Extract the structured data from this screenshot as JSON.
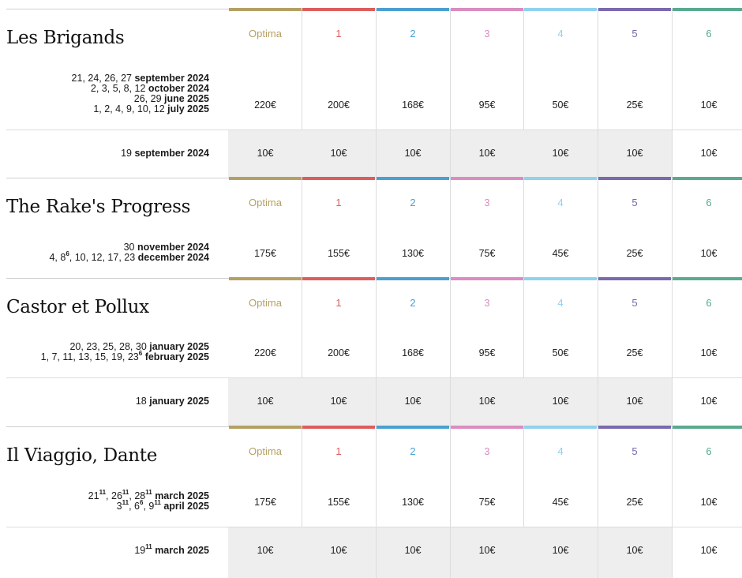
{
  "categories": [
    {
      "label": "Optima",
      "color": "#b5a063"
    },
    {
      "label": "1",
      "color": "#dd5d5d"
    },
    {
      "label": "2",
      "color": "#4aa0d0"
    },
    {
      "label": "3",
      "color": "#db8cc0"
    },
    {
      "label": "4",
      "color": "#8fd2ee"
    },
    {
      "label": "5",
      "color": "#7a6aae"
    },
    {
      "label": "6",
      "color": "#5aab8d"
    }
  ],
  "shows": [
    {
      "title": "Les Brigands",
      "dates": [
        [
          {
            "t": "21, 24, 26, 27 "
          },
          {
            "t": "september 2024",
            "b": true
          }
        ],
        [
          {
            "t": "2, 3, 5, 8, 12 "
          },
          {
            "t": "october 2024",
            "b": true
          }
        ],
        [
          {
            "t": "26, 29 "
          },
          {
            "t": "june 2025",
            "b": true
          }
        ],
        [
          {
            "t": "1, 2, 4, 9, 10, 12 "
          },
          {
            "t": "july 2025",
            "b": true
          }
        ]
      ],
      "prices": [
        "220€",
        "200€",
        "168€",
        "95€",
        "50€",
        "25€",
        "10€"
      ],
      "sub": {
        "date": [
          {
            "t": "19 "
          },
          {
            "t": "september 2024",
            "b": true
          }
        ],
        "prices": [
          "10€",
          "10€",
          "10€",
          "10€",
          "10€",
          "10€",
          "10€"
        ]
      }
    },
    {
      "title": "The Rake's Progress",
      "dates": [
        [
          {
            "t": "30 "
          },
          {
            "t": "november 2024",
            "b": true
          }
        ],
        [
          {
            "t": "4, 8"
          },
          {
            "t": "6",
            "sup": true
          },
          {
            "t": ", 10, 12, 17, 23 "
          },
          {
            "t": "december 2024",
            "b": true
          }
        ]
      ],
      "prices": [
        "175€",
        "155€",
        "130€",
        "75€",
        "45€",
        "25€",
        "10€"
      ]
    },
    {
      "title": "Castor et Pollux",
      "dates": [
        [
          {
            "t": "20, 23, 25, 28, 30 "
          },
          {
            "t": "january 2025",
            "b": true
          }
        ],
        [
          {
            "t": "1, 7, 11, 13, 15, 19, 23"
          },
          {
            "t": "6",
            "sup": true
          },
          {
            "t": " "
          },
          {
            "t": "february 2025",
            "b": true
          }
        ]
      ],
      "prices": [
        "220€",
        "200€",
        "168€",
        "95€",
        "50€",
        "25€",
        "10€"
      ],
      "sub": {
        "date": [
          {
            "t": "18 "
          },
          {
            "t": "january 2025",
            "b": true
          }
        ],
        "prices": [
          "10€",
          "10€",
          "10€",
          "10€",
          "10€",
          "10€",
          "10€"
        ]
      }
    },
    {
      "title": "Il Viaggio, Dante",
      "dates": [
        [
          {
            "t": "21"
          },
          {
            "t": "11",
            "sup": true
          },
          {
            "t": ", 26"
          },
          {
            "t": "11",
            "sup": true
          },
          {
            "t": ", 28"
          },
          {
            "t": "11",
            "sup": true
          },
          {
            "t": " "
          },
          {
            "t": "march 2025",
            "b": true
          }
        ],
        [
          {
            "t": "3"
          },
          {
            "t": "11",
            "sup": true
          },
          {
            "t": ", 6"
          },
          {
            "t": "6",
            "sup": true
          },
          {
            "t": ", 9"
          },
          {
            "t": "11",
            "sup": true
          },
          {
            "t": " "
          },
          {
            "t": "april 2025",
            "b": true
          }
        ]
      ],
      "prices": [
        "175€",
        "155€",
        "130€",
        "75€",
        "45€",
        "25€",
        "10€"
      ],
      "sub": {
        "date": [
          {
            "t": "19"
          },
          {
            "t": "11",
            "sup": true
          },
          {
            "t": " "
          },
          {
            "t": "march 2025",
            "b": true
          }
        ],
        "prices": [
          "10€",
          "10€",
          "10€",
          "10€",
          "10€",
          "10€",
          "10€"
        ]
      }
    }
  ]
}
